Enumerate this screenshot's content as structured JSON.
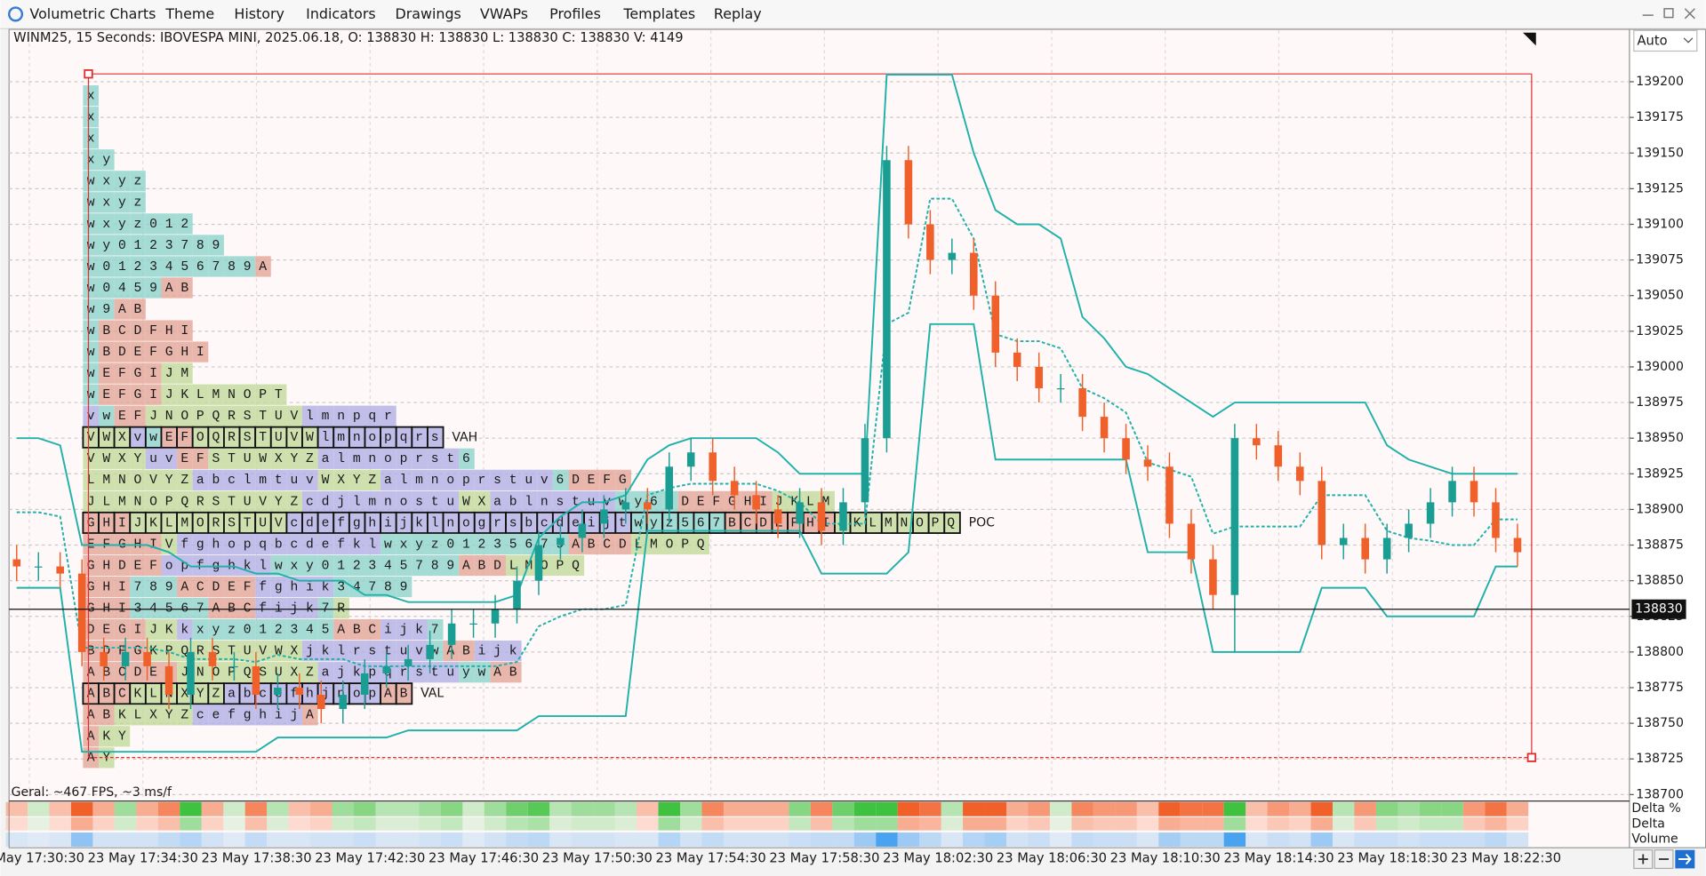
{
  "menu": [
    "Volumetric Charts",
    "Theme",
    "History",
    "Indicators",
    "Drawings",
    "VWAPs",
    "Profiles",
    "Templates",
    "Replay"
  ],
  "header": "WINM25, 15 Seconds: IBOVESPA MINI, 2025.06.18, O: 138830 H: 138830 L: 138830 C: 138830 V: 4149",
  "timeframe_select": "Auto",
  "status": "Geral: ~467 FPS, ~3 ms/f",
  "indicator_labels": [
    "Delta %",
    "Delta",
    "Volume"
  ],
  "chart_data": {
    "type": "candlestick",
    "ylim": [
      138697,
      139236
    ],
    "yticks": [
      138700,
      138725,
      138750,
      138775,
      138800,
      138825,
      138850,
      138875,
      138900,
      138925,
      138950,
      138975,
      139000,
      139025,
      139050,
      139075,
      139100,
      139125,
      139150,
      139175,
      139200
    ],
    "grid": true,
    "time_labels": [
      "23 May 17:30:30",
      "23 May 17:34:30",
      "23 May 17:38:30",
      "23 May 17:42:30",
      "23 May 17:46:30",
      "23 May 17:50:30",
      "23 May 17:54:30",
      "23 May 17:58:30",
      "23 May 18:02:30",
      "23 May 18:06:30",
      "23 May 18:10:30",
      "23 May 18:14:30",
      "23 May 18:18:30",
      "23 May 18:22:30"
    ],
    "up_color": "#1a9e94",
    "down_color": "#f0602a",
    "channel_color": "#20b2aa",
    "last_price": 138830,
    "open": [
      138865,
      138860,
      138860,
      138855,
      138800,
      138790,
      138800,
      138790,
      138770,
      138800,
      138790,
      138790,
      138770,
      138775,
      138770,
      138760,
      138770,
      138785,
      138790,
      138795,
      138805,
      138820,
      138820,
      138830,
      138850,
      138875,
      138880,
      138890,
      138900,
      138905,
      138900,
      138930,
      138940,
      138920,
      138910,
      138900,
      138890,
      138905,
      138885,
      138905,
      138950,
      139145,
      139100,
      139075,
      139080,
      139050,
      139010,
      139000,
      138985,
      138985,
      138965,
      138950,
      138935,
      138930,
      138890,
      138865,
      138840,
      138950,
      138945,
      138930,
      138920,
      138875,
      138880,
      138865,
      138880,
      138890,
      138905,
      138920,
      138905,
      138880
    ],
    "high": [
      138875,
      138870,
      138870,
      138865,
      138810,
      138810,
      138810,
      138800,
      138810,
      138810,
      138800,
      138800,
      138785,
      138785,
      138780,
      138780,
      138795,
      138800,
      138805,
      138815,
      138830,
      138830,
      138840,
      138860,
      138885,
      138890,
      138900,
      138910,
      138915,
      138915,
      138940,
      138950,
      138950,
      138930,
      138920,
      138910,
      138915,
      138915,
      138915,
      138960,
      139155,
      139155,
      139110,
      139090,
      139090,
      139060,
      139020,
      139010,
      138995,
      138995,
      138975,
      138960,
      138945,
      138940,
      138900,
      138875,
      138960,
      138960,
      138955,
      138940,
      138930,
      138890,
      138890,
      138890,
      138900,
      138915,
      138930,
      138930,
      138915,
      138890
    ],
    "low": [
      138850,
      138850,
      138845,
      138790,
      138780,
      138780,
      138780,
      138760,
      138760,
      138780,
      138780,
      138760,
      138760,
      138760,
      138750,
      138750,
      138760,
      138775,
      138780,
      138785,
      138795,
      138810,
      138810,
      138820,
      138840,
      138865,
      138870,
      138880,
      138890,
      138890,
      138890,
      138920,
      138910,
      138900,
      138890,
      138880,
      138880,
      138875,
      138875,
      138895,
      138940,
      139090,
      139065,
      139065,
      139040,
      139000,
      138990,
      138975,
      138975,
      138955,
      138940,
      138925,
      138920,
      138880,
      138855,
      138830,
      138800,
      138935,
      138920,
      138910,
      138865,
      138865,
      138855,
      138855,
      138870,
      138880,
      138895,
      138895,
      138870,
      138860
    ],
    "close": [
      138860,
      138860,
      138855,
      138800,
      138790,
      138800,
      138790,
      138770,
      138800,
      138790,
      138790,
      138770,
      138775,
      138770,
      138760,
      138770,
      138785,
      138790,
      138795,
      138805,
      138820,
      138820,
      138830,
      138850,
      138875,
      138880,
      138890,
      138900,
      138905,
      138900,
      138930,
      138940,
      138920,
      138910,
      138900,
      138890,
      138905,
      138885,
      138905,
      138950,
      139145,
      139100,
      139075,
      139080,
      139050,
      139010,
      139000,
      138985,
      138985,
      138965,
      138950,
      138935,
      138930,
      138890,
      138865,
      138840,
      138950,
      138945,
      138930,
      138920,
      138875,
      138880,
      138865,
      138880,
      138890,
      138905,
      138920,
      138905,
      138880,
      138870
    ],
    "channel": {
      "upper": [
        138950,
        138950,
        138945,
        138875,
        138875,
        138875,
        138875,
        138870,
        138860,
        138860,
        138860,
        138855,
        138855,
        138850,
        138850,
        138850,
        138840,
        138840,
        138835,
        138835,
        138835,
        138835,
        138835,
        138840,
        138880,
        138895,
        138905,
        138905,
        138910,
        138935,
        138945,
        138950,
        138950,
        138950,
        138950,
        138940,
        138925,
        138925,
        138925,
        138925,
        139205,
        139205,
        139205,
        139205,
        139150,
        139110,
        139100,
        139100,
        139090,
        139035,
        139020,
        139000,
        138995,
        138985,
        138975,
        138965,
        138975,
        138975,
        138975,
        138975,
        138975,
        138975,
        138975,
        138945,
        138935,
        138930,
        138925,
        138925,
        138925,
        138925
      ],
      "middle": [
        138898,
        138898,
        138895,
        138803,
        138803,
        138803,
        138803,
        138800,
        138795,
        138795,
        138795,
        138793,
        138798,
        138795,
        138795,
        138795,
        138790,
        138790,
        138790,
        138790,
        138790,
        138790,
        138790,
        138793,
        138818,
        138825,
        138830,
        138830,
        138833,
        138910,
        138915,
        138918,
        138918,
        138918,
        138918,
        138913,
        138905,
        138890,
        138890,
        138890,
        139030,
        139038,
        139118,
        139118,
        139090,
        139023,
        139018,
        139018,
        139013,
        138985,
        138978,
        138968,
        138933,
        138928,
        138923,
        138883,
        138888,
        138888,
        138888,
        138888,
        138910,
        138910,
        138910,
        138885,
        138880,
        138878,
        138875,
        138875,
        138893,
        138893
      ],
      "lower": [
        138845,
        138845,
        138845,
        138730,
        138730,
        138730,
        138730,
        138730,
        138730,
        138730,
        138730,
        138730,
        138740,
        138740,
        138740,
        138740,
        138740,
        138740,
        138745,
        138745,
        138745,
        138745,
        138745,
        138745,
        138755,
        138755,
        138755,
        138755,
        138755,
        138885,
        138885,
        138885,
        138885,
        138885,
        138885,
        138885,
        138885,
        138855,
        138855,
        138855,
        138855,
        138870,
        139030,
        139030,
        139030,
        138935,
        138935,
        138935,
        138935,
        138935,
        138935,
        138935,
        138870,
        138870,
        138870,
        138800,
        138800,
        138800,
        138800,
        138800,
        138845,
        138845,
        138845,
        138825,
        138825,
        138825,
        138825,
        138825,
        138860,
        138860
      ]
    },
    "profile": {
      "rows": [
        {
          "cells": "x"
        },
        {
          "cells": "x"
        },
        {
          "cells": "x"
        },
        {
          "cells": "x y"
        },
        {
          "cells": "w x y z"
        },
        {
          "cells": "w x y z"
        },
        {
          "cells": "w x y z 0 1 2"
        },
        {
          "cells": "w y 0 1 2 3 7 8 9"
        },
        {
          "cells": "w 0 1 2 3 4 5 6 7 8 9 A"
        },
        {
          "cells": "w 0 4 5 9 A B"
        },
        {
          "cells": "w 9 A B"
        },
        {
          "cells": "w B C D F H I"
        },
        {
          "cells": "w B D E F G H I"
        },
        {
          "cells": "w E F G I J M"
        },
        {
          "cells": "w E F G I J K L M N O P T"
        },
        {
          "cells": "v w E F J N O P Q R S T U V l m n p q r"
        },
        {
          "cells": "V W X v w E F O Q R S T U V W l m n o p q r s",
          "label": "VAH"
        },
        {
          "cells": "V W X Y u v E F S T U W X Y Z a l m n o p r s t 6"
        },
        {
          "cells": "L M N O V Y Z a b c l m t u v W X Y Z a l m n o p r s t u v 6 D E F G"
        },
        {
          "cells": "J L M N O P Q R S T U V Y Z c d j l m n o s t u W X a b l n s t u v w y 6 7 D E F G H I J K L M"
        },
        {
          "cells": "G H I J K L M O R S T U V c d e f g h i j k l n o g r s b c d e i j t w y z 5 6 7 B C D E F H I J K L M N O P Q",
          "label": "POC"
        },
        {
          "cells": "E F G H I V f g h o p q b c d e f k l w x y z 0 1 2 3 5 6 7 9 A B C D L M O P Q"
        },
        {
          "cells": "G H D E F o p f g h k l w x y 0 1 2 3 4 5 7 8 9 A B D L M O P Q"
        },
        {
          "cells": "G H I 7 8 9 A C D E F f g h i k 3 4 7 8 9"
        },
        {
          "cells": "G H I 3 4 5 6 7 A B C f i j k 7 R"
        },
        {
          "cells": "D E G I J K k x y z 0 1 2 3 4 5 A B C i j k 7"
        },
        {
          "cells": "B D F G K P Q R S T U V W X j k l r s t u v w A B i j k"
        },
        {
          "cells": "A B C D E F J N O P Q S U X Z a j k p q r s t u y w A B"
        },
        {
          "cells": "A B C K L N X Y Z a b c e f h j n o p A B",
          "label": "VAL"
        },
        {
          "cells": "A B K L X Y Z c e f g h i j A"
        },
        {
          "cells": "A K Y"
        },
        {
          "cells": "A Y"
        }
      ]
    }
  }
}
